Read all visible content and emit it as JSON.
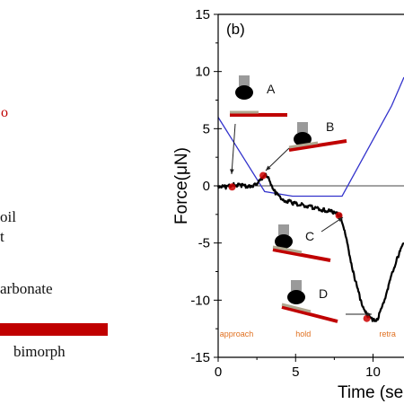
{
  "left_panel": {
    "circle_fragment": "o",
    "oil_fragment": "oil",
    "t_fragment": "t",
    "carbonate_fragment": "arbonate",
    "bimorph_label": "bimorph",
    "colors": {
      "bimorph_bar": "#c00000",
      "circle": "#c00000"
    }
  },
  "chart_data": {
    "type": "line",
    "panel_label": "(b)",
    "xlabel": "Time (se",
    "ylabel": "Force(μN)",
    "xlim": [
      0,
      12
    ],
    "ylim": [
      -15,
      15
    ],
    "x_ticks": [
      0,
      5,
      10
    ],
    "y_ticks": [
      15,
      10,
      5,
      0,
      -5,
      -10,
      -15
    ],
    "series": [
      {
        "color": "#000000",
        "x": [
          0,
          0.5,
          1,
          1.5,
          2,
          2.5,
          2.8,
          3.0,
          3.3,
          3.7,
          4.2,
          4.8,
          5.5,
          6.2,
          6.8,
          7.4,
          7.9,
          8.1,
          8.4,
          8.8,
          9.2,
          9.6,
          10.0,
          10.3,
          10.6,
          10.9,
          11.2,
          11.6,
          12.0
        ],
        "values": [
          0.0,
          -0.1,
          0.1,
          0.0,
          0.0,
          0.1,
          0.6,
          1.0,
          0.5,
          -0.6,
          -1.2,
          -1.5,
          -1.7,
          -1.9,
          -2.1,
          -2.3,
          -2.6,
          -3.5,
          -5.5,
          -8.0,
          -10.0,
          -11.3,
          -11.8,
          -11.6,
          -10.6,
          -9.2,
          -7.8,
          -6.2,
          -5.0
        ]
      },
      {
        "color": "#3333cc",
        "x": [
          0,
          3.0,
          4.8,
          8.0,
          11.2,
          12
        ],
        "values": [
          6.0,
          -0.5,
          -0.9,
          -0.9,
          7.0,
          9.5
        ]
      }
    ],
    "reference_line": {
      "y": 0,
      "color": "#444444"
    },
    "markers": {
      "color": "#cc0000",
      "points": [
        [
          0.9,
          -0.1
        ],
        [
          2.9,
          0.9
        ],
        [
          7.8,
          -2.6
        ],
        [
          9.6,
          -11.6
        ]
      ]
    },
    "annotations": [
      {
        "text": "A",
        "arrow_to": [
          0.9,
          -0.1
        ]
      },
      {
        "text": "B",
        "arrow_to": [
          2.9,
          0.9
        ]
      },
      {
        "text": "C",
        "arrow_to": [
          7.8,
          -2.6
        ]
      },
      {
        "text": "D",
        "arrow_to": [
          9.6,
          -11.6
        ]
      }
    ],
    "phase_labels": [
      {
        "text": "approach",
        "x": 0.1,
        "y": -13.2
      },
      {
        "text": "hold",
        "x": 5.0,
        "y": -13.2
      },
      {
        "text": "retra",
        "x": 10.4,
        "y": -13.2
      }
    ],
    "colors": {
      "phase_text": "#e07020",
      "force_trace": "#000000",
      "drive_signal": "#3333cc",
      "marker": "#cc0000",
      "substrate": "#c00000",
      "particle": "#000000"
    }
  }
}
